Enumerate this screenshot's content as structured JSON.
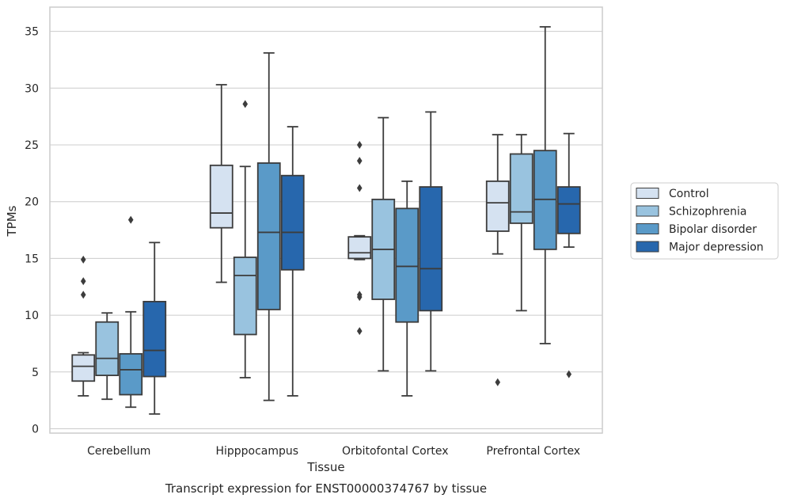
{
  "chart_data": {
    "type": "boxplot",
    "caption": "Transcript expression for ENST00000374767 by tissue",
    "xlabel": "Tissue",
    "ylabel": "TPMs",
    "ylim": [
      -0.4,
      37
    ],
    "yticks": [
      0,
      5,
      10,
      15,
      20,
      25,
      30,
      35
    ],
    "grid": "horizontal",
    "legend_position": "right",
    "categories": [
      "Cerebellum",
      "Hipppocampus",
      "Orbitofontal Cortex",
      "Prefrontal Cortex"
    ],
    "series": [
      {
        "name": "Control",
        "color": "#d5e2f1",
        "boxes": [
          {
            "whislo": 2.9,
            "q1": 4.2,
            "med": 5.5,
            "q3": 6.5,
            "whishi": 6.7,
            "fliers": [
              11.8,
              13.0,
              14.9
            ]
          },
          {
            "whislo": 12.9,
            "q1": 17.7,
            "med": 19.0,
            "q3": 23.2,
            "whishi": 30.3,
            "fliers": []
          },
          {
            "whislo": 14.9,
            "q1": 15.0,
            "med": 15.5,
            "q3": 16.9,
            "whishi": 17.0,
            "fliers": [
              8.6,
              11.6,
              11.8,
              21.2,
              23.6,
              25.0
            ]
          },
          {
            "whislo": 15.4,
            "q1": 17.4,
            "med": 19.9,
            "q3": 21.8,
            "whishi": 25.9,
            "fliers": [
              4.1
            ]
          }
        ]
      },
      {
        "name": "Schizophrenia",
        "color": "#99c3df",
        "boxes": [
          {
            "whislo": 2.6,
            "q1": 4.7,
            "med": 6.2,
            "q3": 9.4,
            "whishi": 10.2,
            "fliers": []
          },
          {
            "whislo": 4.5,
            "q1": 8.3,
            "med": 13.5,
            "q3": 15.1,
            "whishi": 23.1,
            "fliers": [
              28.6
            ]
          },
          {
            "whislo": 5.1,
            "q1": 11.4,
            "med": 15.8,
            "q3": 20.2,
            "whishi": 27.4,
            "fliers": []
          },
          {
            "whislo": 10.4,
            "q1": 18.1,
            "med": 19.1,
            "q3": 24.2,
            "whishi": 25.9,
            "fliers": []
          }
        ]
      },
      {
        "name": "Bipolar disorder",
        "color": "#5a9ac8",
        "boxes": [
          {
            "whislo": 1.9,
            "q1": 3.0,
            "med": 5.2,
            "q3": 6.6,
            "whishi": 10.3,
            "fliers": [
              18.4
            ]
          },
          {
            "whislo": 2.5,
            "q1": 10.5,
            "med": 17.3,
            "q3": 23.4,
            "whishi": 33.1,
            "fliers": []
          },
          {
            "whislo": 2.9,
            "q1": 9.4,
            "med": 14.3,
            "q3": 19.4,
            "whishi": 21.8,
            "fliers": []
          },
          {
            "whislo": 7.5,
            "q1": 15.8,
            "med": 20.2,
            "q3": 24.5,
            "whishi": 35.4,
            "fliers": []
          }
        ]
      },
      {
        "name": "Major depression",
        "color": "#2767ad",
        "boxes": [
          {
            "whislo": 1.3,
            "q1": 4.6,
            "med": 6.9,
            "q3": 11.2,
            "whishi": 16.4,
            "fliers": []
          },
          {
            "whislo": 2.9,
            "q1": 14.0,
            "med": 17.3,
            "q3": 22.3,
            "whishi": 26.6,
            "fliers": []
          },
          {
            "whislo": 5.1,
            "q1": 10.4,
            "med": 14.1,
            "q3": 21.3,
            "whishi": 27.9,
            "fliers": []
          },
          {
            "whislo": 16.0,
            "q1": 17.2,
            "med": 19.8,
            "q3": 21.3,
            "whishi": 26.0,
            "fliers": [
              4.8
            ]
          }
        ]
      }
    ]
  }
}
